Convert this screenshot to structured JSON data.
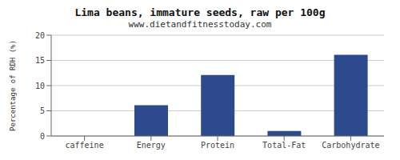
{
  "chart_data": {
    "type": "bar",
    "title": "Lima beans, immature seeds, raw per 100g",
    "subtitle": "www.dietandfitnesstoday.com",
    "categories": [
      "caffeine",
      "Energy",
      "Protein",
      "Total-Fat",
      "Carbohydrate"
    ],
    "values": [
      0,
      6.1,
      12.1,
      1.0,
      16.1
    ],
    "color": "#2e4a8e",
    "ylabel": "Percentage of RDH (%)",
    "ylim": [
      0,
      20
    ],
    "yticks": [
      0,
      5,
      10,
      15,
      20
    ],
    "grid": true
  }
}
